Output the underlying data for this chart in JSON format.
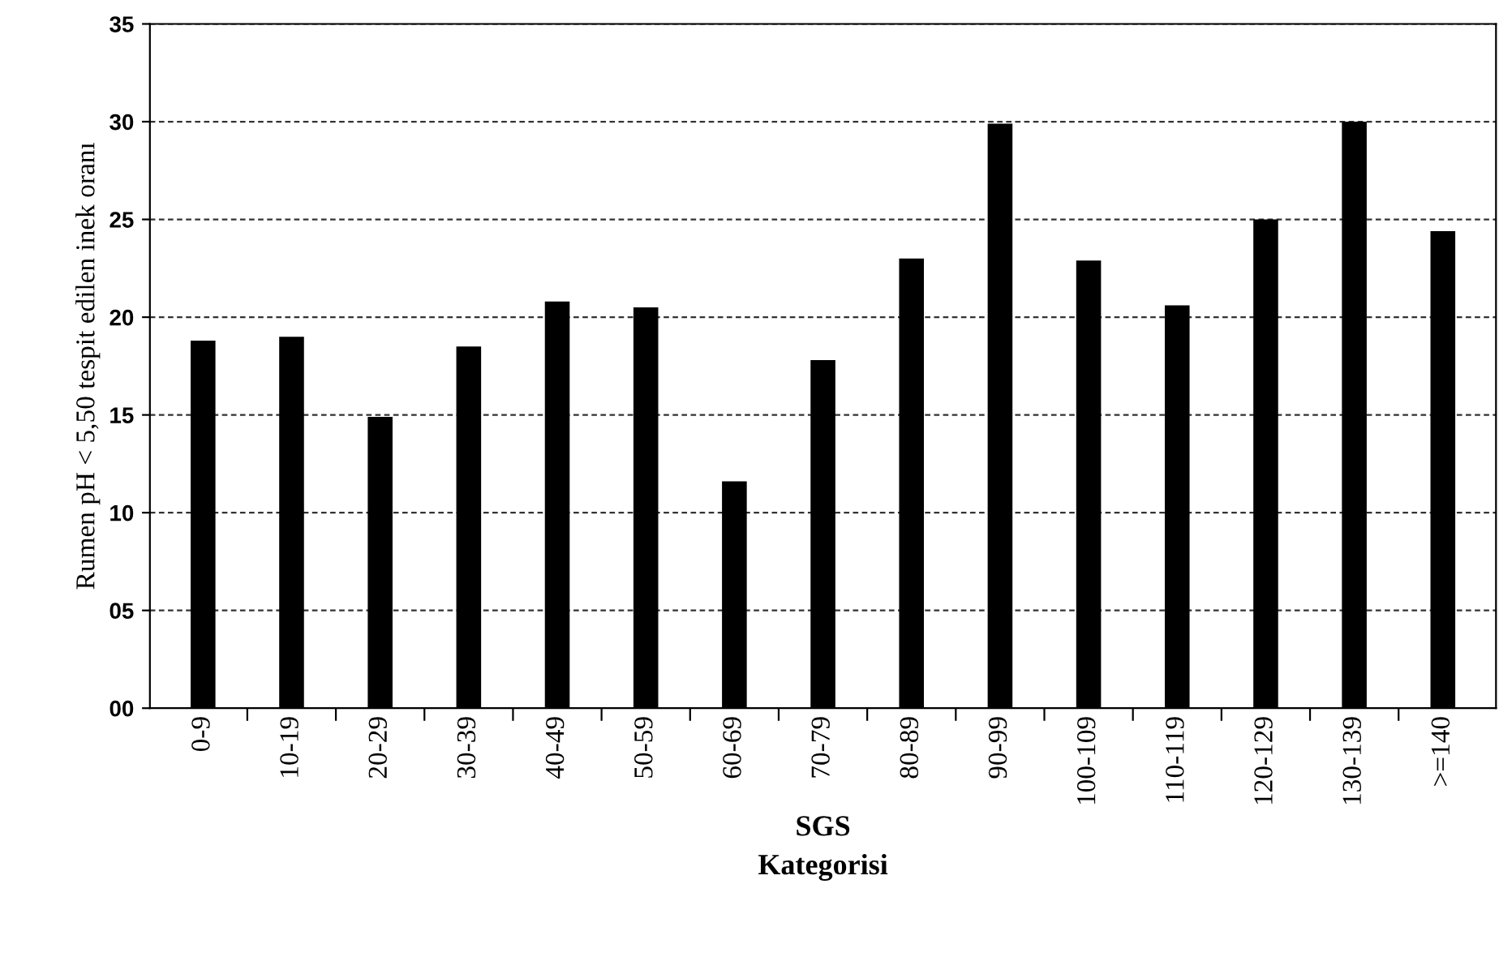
{
  "chart_data": {
    "type": "bar",
    "xlabel": "SGS\nKategorisi",
    "ylabel": "Rumen pH < 5,50 tespit edilen inek oranı",
    "categories": [
      "0-9",
      "10-19",
      "20-29",
      "30-39",
      "40-49",
      "50-59",
      "60-69",
      "70-79",
      "80-89",
      "90-99",
      "100-109",
      "110-119",
      "120-129",
      "130-139",
      ">=140"
    ],
    "values": [
      18.8,
      19.0,
      14.9,
      18.5,
      20.8,
      20.5,
      11.6,
      17.8,
      23.0,
      29.9,
      22.9,
      20.6,
      25.0,
      30.0,
      24.4
    ],
    "color": "#000000",
    "ylim": [
      0,
      35
    ],
    "yticks": [
      {
        "value": 0,
        "label": "00"
      },
      {
        "value": 5,
        "label": "05"
      },
      10,
      15,
      20,
      25,
      30,
      35
    ],
    "grid": "y",
    "legend": false
  }
}
